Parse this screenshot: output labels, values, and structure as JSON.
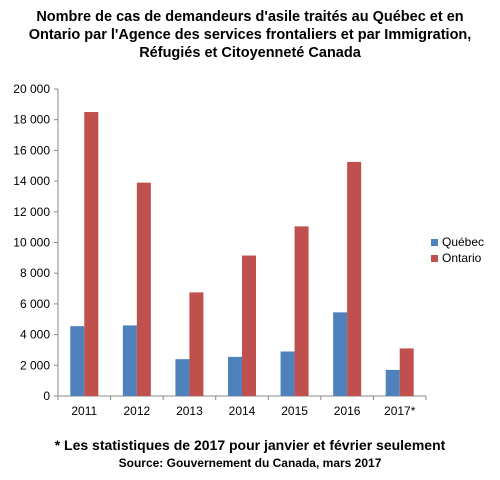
{
  "chart_data": {
    "type": "bar",
    "title_lines": [
      "Nombre de cas de demandeurs d'asile traités au Québec et en",
      "Ontario par l'Agence des services frontaliers et par Immigration,",
      "Réfugiés et Citoyenneté Canada"
    ],
    "categories": [
      "2011",
      "2012",
      "2013",
      "2014",
      "2015",
      "2016",
      "2017*"
    ],
    "series": [
      {
        "name": "Québec",
        "color": "#4f81bd",
        "values": [
          4550,
          4600,
          2400,
          2550,
          2900,
          5450,
          1700
        ]
      },
      {
        "name": "Ontario",
        "color": "#c0504d",
        "values": [
          18500,
          13900,
          6750,
          9150,
          11050,
          15250,
          3100
        ]
      }
    ],
    "yticks": [
      "0",
      "2 000",
      "4 000",
      "6 000",
      "8 000",
      "10 000",
      "12 000",
      "14 000",
      "16 000",
      "18 000",
      "20 000"
    ],
    "ylim": [
      0,
      20000
    ],
    "grid": false,
    "legend_position": "right",
    "footnote": "* Les statistiques de 2017 pour janvier et février seulement",
    "source": "Source: Gouvernement du Canada, mars 2017"
  }
}
